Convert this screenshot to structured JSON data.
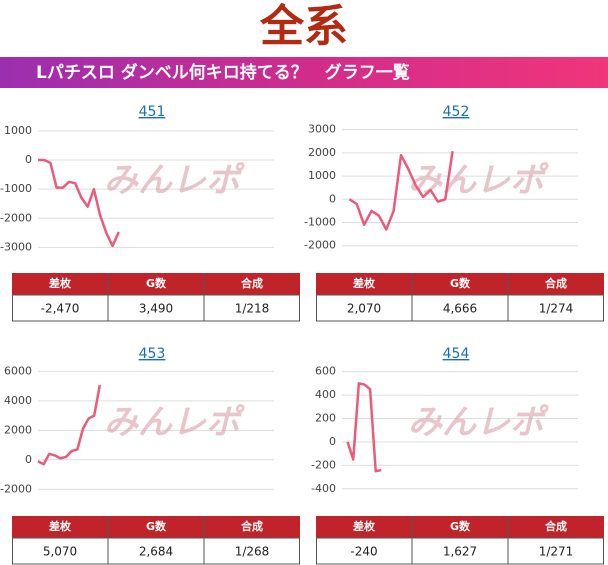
{
  "header": {
    "title": "全系",
    "banner": "Lパチスロ ダンベル何キロ持てる？　グラフ一覧",
    "watermark": "みんレポ"
  },
  "chart_data": [
    {
      "type": "line",
      "title": "451",
      "x": [
        0,
        1,
        2,
        3,
        4,
        5,
        6,
        7,
        8,
        9,
        10,
        11,
        12,
        13
      ],
      "values": [
        0,
        0,
        -100,
        -950,
        -950,
        -750,
        -800,
        -1300,
        -1600,
        -1000,
        -1900,
        -2500,
        -2950,
        -2470
      ],
      "color": "#ea5a7c",
      "xlim": [
        0,
        38
      ],
      "ylim": [
        -3500,
        1200
      ],
      "yticks": [
        1000,
        0,
        -1000,
        -2000,
        -3000
      ],
      "grid": true
    },
    {
      "type": "line",
      "title": "452",
      "x": [
        0,
        1,
        2,
        3,
        4,
        5,
        6,
        7,
        8,
        9,
        10,
        11,
        12,
        13,
        14
      ],
      "values": [
        0,
        -200,
        -1100,
        -500,
        -700,
        -1300,
        -500,
        1900,
        1300,
        600,
        100,
        400,
        -100,
        0,
        2070
      ],
      "color": "#ea5a7c",
      "xlim": [
        -1,
        31
      ],
      "ylim": [
        -2700,
        3200
      ],
      "yticks": [
        3000,
        2000,
        1000,
        0,
        -1000,
        -2000
      ],
      "grid": true
    },
    {
      "type": "line",
      "title": "453",
      "x": [
        0,
        1,
        2,
        3,
        4,
        5,
        6,
        7,
        8,
        9,
        10,
        11
      ],
      "values": [
        -100,
        -300,
        400,
        300,
        100,
        200,
        600,
        700,
        2100,
        2800,
        3000,
        5070
      ],
      "color": "#ea5a7c",
      "xlim": [
        0,
        42
      ],
      "ylim": [
        -3000,
        6300
      ],
      "yticks": [
        6000,
        4000,
        2000,
        0,
        -2000
      ],
      "grid": true
    },
    {
      "type": "line",
      "title": "454",
      "x": [
        0,
        1,
        2,
        3,
        4,
        5,
        6
      ],
      "values": [
        0,
        -150,
        500,
        490,
        450,
        -250,
        -240
      ],
      "color": "#ea5a7c",
      "xlim": [
        -1,
        41
      ],
      "ylim": [
        -530,
        640
      ],
      "yticks": [
        600,
        400,
        200,
        0,
        -200,
        -400
      ],
      "grid": true
    }
  ],
  "tables": [
    {
      "header": [
        "差枚",
        "G数",
        "合成"
      ],
      "row": [
        "-2,470",
        "3,490",
        "1/218"
      ]
    },
    {
      "header": [
        "差枚",
        "G数",
        "合成"
      ],
      "row": [
        "2,070",
        "4,666",
        "1/274"
      ]
    },
    {
      "header": [
        "差枚",
        "G数",
        "合成"
      ],
      "row": [
        "5,070",
        "2,684",
        "1/268"
      ]
    },
    {
      "header": [
        "差枚",
        "G数",
        "合成"
      ],
      "row": [
        "-240",
        "1,627",
        "1/271"
      ]
    }
  ]
}
